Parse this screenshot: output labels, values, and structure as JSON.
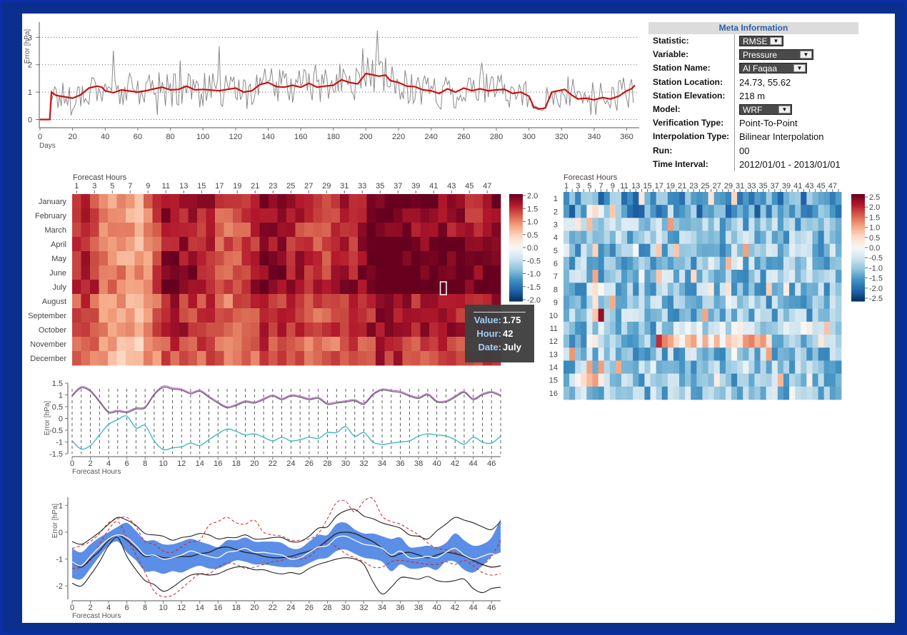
{
  "meta": {
    "title": "Meta Information",
    "rows": [
      {
        "key": "Statistic:",
        "value": "RMSE",
        "select": true,
        "w": 62
      },
      {
        "key": "Variable:",
        "value": "Pressure",
        "select": true,
        "w": 104
      },
      {
        "key": "Station Name:",
        "value": "Al Faqaa",
        "select": true,
        "w": 95
      },
      {
        "key": "Station Location:",
        "value": "24.73, 55.62"
      },
      {
        "key": "Station Elevation:",
        "value": "218 m"
      },
      {
        "key": "Model:",
        "value": "WRF",
        "select": true,
        "w": 74
      },
      {
        "key": "Verification Type:",
        "value": "Point-To-Point"
      },
      {
        "key": "Interpolation Type:",
        "value": "Bilinear Interpolation"
      },
      {
        "key": "Run:",
        "value": "00"
      },
      {
        "key": "Time Interval:",
        "value": "2012/01/01 - 2013/01/01"
      }
    ]
  },
  "tooltip": {
    "value_label": "Value:",
    "value": "1.75",
    "hour_label": "Hour:",
    "hour": "42",
    "date_label": "Date:",
    "date": "July"
  },
  "colors": {
    "frame": "#0a2f8f",
    "panel": "#ffffff",
    "daily_raw": "#8a8a8a",
    "daily_smooth": "#cc1111",
    "diurnal_upper": "#c76ad0",
    "diurnal_mid": "#666666",
    "diurnal_lower": "#2fb7c6",
    "band_fill": "#5b8ee6",
    "band_line": "#222222",
    "band_dashed": "#d62020",
    "band_white": "#ffffff"
  },
  "chart_data": [
    {
      "type": "line",
      "name": "daily-error",
      "ylabel": "Error [hPa]",
      "xlabel": "Days",
      "xlim": [
        0,
        365
      ],
      "ylim": [
        -0.3,
        3.4
      ],
      "xticks": [
        0,
        20,
        40,
        60,
        80,
        100,
        120,
        140,
        160,
        180,
        200,
        220,
        240,
        260,
        280,
        300,
        320,
        340,
        360
      ],
      "yticks": [
        0,
        1,
        2,
        3
      ],
      "smooth_x": [
        0,
        6,
        7,
        8,
        10,
        20,
        25,
        30,
        35,
        38,
        40,
        45,
        50,
        60,
        65,
        70,
        75,
        80,
        85,
        90,
        95,
        100,
        110,
        120,
        125,
        130,
        135,
        140,
        145,
        150,
        155,
        160,
        165,
        170,
        175,
        180,
        185,
        190,
        195,
        200,
        205,
        208,
        212,
        215,
        220,
        225,
        230,
        235,
        240,
        245,
        250,
        255,
        260,
        265,
        270,
        275,
        280,
        285,
        290,
        295,
        300,
        303,
        306,
        310,
        314,
        318,
        322,
        326,
        330,
        335,
        340,
        345,
        350,
        355,
        360,
        363,
        365
      ],
      "smooth_y": [
        0,
        0,
        1.0,
        0.95,
        0.88,
        0.78,
        0.9,
        1.15,
        1.22,
        1.18,
        1.05,
        0.98,
        1.08,
        1.0,
        1.05,
        1.12,
        1.18,
        1.08,
        1.1,
        1.22,
        1.08,
        1.1,
        1.05,
        1.15,
        1.0,
        1.05,
        1.28,
        1.35,
        1.2,
        1.18,
        1.25,
        1.18,
        1.32,
        1.18,
        1.22,
        1.25,
        1.45,
        1.35,
        1.3,
        1.68,
        1.62,
        1.58,
        1.62,
        1.42,
        1.35,
        1.22,
        1.2,
        1.08,
        1.05,
        0.95,
        1.12,
        1.0,
        1.15,
        1.05,
        1.12,
        1.05,
        1.08,
        1.1,
        0.95,
        1.0,
        0.85,
        0.45,
        0.38,
        0.42,
        1.0,
        1.05,
        1.1,
        0.9,
        0.75,
        0.78,
        0.72,
        0.8,
        0.75,
        0.85,
        1.05,
        1.12,
        1.25
      ]
    },
    {
      "type": "heatmap",
      "name": "monthly-hour-heatmap",
      "xlabel": "Forecast Hours",
      "xticks": [
        "1",
        "3",
        "5",
        "7",
        "9",
        "11",
        "13",
        "15",
        "17",
        "19",
        "21",
        "23",
        "25",
        "27",
        "29",
        "31",
        "33",
        "35",
        "37",
        "39",
        "41",
        "43",
        "45",
        "47"
      ],
      "rows": [
        "January",
        "February",
        "March",
        "April",
        "May",
        "June",
        "July",
        "August",
        "September",
        "October",
        "November",
        "December"
      ],
      "columns": 48,
      "colorbar": [
        "2.0",
        "1.5",
        "1.0",
        "0.5",
        "0.0",
        "-0.5",
        "-1.0",
        "-1.5",
        "-2.0"
      ],
      "vmin": -2.0,
      "vmax": 2.0,
      "month_base": [
        1.4,
        1.35,
        1.3,
        1.3,
        1.35,
        1.4,
        1.45,
        1.2,
        1.15,
        1.25,
        1.05,
        1.05
      ],
      "hour_profile": [
        1.1,
        1.15,
        1.0,
        0.85,
        0.7,
        0.65,
        0.6,
        0.6,
        0.75,
        0.95,
        1.3,
        1.3,
        1.25,
        1.25,
        1.2,
        1.15,
        1.0,
        0.95,
        1.0,
        1.05,
        1.15,
        1.3,
        1.3,
        1.25,
        1.2,
        1.15,
        1.1,
        1.05,
        1.05,
        1.1,
        1.15,
        1.2,
        1.25,
        1.35,
        1.45,
        1.45,
        1.4,
        1.35,
        1.3,
        1.3,
        1.35,
        1.35,
        1.3,
        1.25,
        1.2,
        1.2,
        1.3,
        1.35
      ]
    },
    {
      "type": "heatmap",
      "name": "station-hour-heatmap",
      "xlabel": "Forecast Hours",
      "xticks": [
        "1",
        "3",
        "5",
        "7",
        "9",
        "11",
        "13",
        "15",
        "17",
        "19",
        "21",
        "23",
        "25",
        "27",
        "29",
        "31",
        "33",
        "35",
        "37",
        "39",
        "41",
        "43",
        "45",
        "47"
      ],
      "rows": [
        "1",
        "2",
        "3",
        "4",
        "5",
        "6",
        "7",
        "8",
        "9",
        "10",
        "11",
        "12",
        "13",
        "14",
        "15",
        "16"
      ],
      "columns": 48,
      "colorbar": [
        "2.5",
        "2.0",
        "1.5",
        "1.0",
        "0.5",
        "0.0",
        "-0.5",
        "-1.0",
        "-1.5",
        "-2.0",
        "-2.5"
      ],
      "vmin": -2.5,
      "vmax": 2.5
    },
    {
      "type": "line",
      "name": "diurnal-error",
      "ylabel": "Error [hPa]",
      "xlabel": "Forecast Hours",
      "xlim": [
        0,
        47
      ],
      "ylim": [
        -1.5,
        1.5
      ],
      "yticks": [
        "1.5",
        "1",
        "0.5",
        "0",
        "-0.5",
        "-1",
        "-1.5"
      ],
      "xticks": [
        "0",
        "2",
        "4",
        "6",
        "8",
        "10",
        "12",
        "14",
        "16",
        "18",
        "20",
        "22",
        "24",
        "26",
        "28",
        "30",
        "32",
        "34",
        "36",
        "38",
        "40",
        "42",
        "44",
        "46"
      ],
      "x": [
        0,
        1,
        2,
        3,
        4,
        5,
        6,
        7,
        8,
        9,
        10,
        11,
        12,
        13,
        14,
        15,
        16,
        17,
        18,
        19,
        20,
        21,
        22,
        23,
        24,
        25,
        26,
        27,
        28,
        29,
        30,
        31,
        32,
        33,
        34,
        35,
        36,
        37,
        38,
        39,
        40,
        41,
        42,
        43,
        44,
        45,
        46,
        47
      ],
      "series": [
        {
          "values": [
            1.0,
            1.35,
            1.2,
            0.75,
            0.3,
            0.35,
            0.3,
            0.45,
            0.5,
            1.05,
            1.38,
            1.3,
            1.25,
            1.1,
            1.2,
            0.95,
            0.7,
            0.5,
            0.6,
            0.75,
            0.7,
            0.85,
            1.0,
            0.85,
            1.0,
            0.95,
            0.85,
            0.9,
            0.65,
            0.7,
            0.75,
            0.8,
            0.65,
            1.05,
            1.25,
            1.2,
            1.15,
            1.0,
            0.9,
            1.05,
            0.75,
            0.75,
            0.95,
            1.15,
            0.85,
            1.05,
            1.15,
            1.0
          ]
        },
        {
          "values": [
            0.95,
            1.3,
            1.15,
            0.7,
            0.25,
            0.3,
            0.25,
            0.4,
            0.45,
            1.0,
            1.32,
            1.25,
            1.2,
            1.05,
            1.15,
            0.9,
            0.65,
            0.45,
            0.55,
            0.7,
            0.65,
            0.8,
            0.95,
            0.8,
            0.95,
            0.9,
            0.8,
            0.85,
            0.6,
            0.65,
            0.7,
            0.75,
            0.6,
            1.0,
            1.2,
            1.15,
            1.1,
            0.95,
            0.85,
            1.0,
            0.7,
            0.7,
            0.9,
            1.1,
            0.8,
            1.0,
            1.1,
            0.95
          ]
        },
        {
          "values": [
            -0.95,
            -1.3,
            -1.15,
            -0.7,
            -0.25,
            -0.05,
            0.1,
            -0.4,
            -0.3,
            -0.95,
            -1.32,
            -1.25,
            -1.2,
            -1.05,
            -1.15,
            -0.9,
            -0.65,
            -0.45,
            -0.55,
            -0.7,
            -0.65,
            -0.8,
            -0.95,
            -0.8,
            -0.95,
            -0.9,
            -0.8,
            -0.85,
            -0.6,
            -0.6,
            -0.35,
            -0.75,
            -0.6,
            -1.0,
            -1.1,
            -1.05,
            -1.0,
            -0.95,
            -0.75,
            -0.65,
            -0.7,
            -0.75,
            -0.9,
            -1.1,
            -0.8,
            -1.0,
            -1.05,
            -0.75
          ]
        }
      ]
    },
    {
      "type": "area",
      "name": "error-spread",
      "ylabel": "Error [hPa]",
      "xlabel": "Forecast Hours",
      "xlim": [
        0,
        47
      ],
      "ylim": [
        -2.5,
        1.3
      ],
      "yticks": [
        "1",
        "0",
        "-1",
        "-2"
      ],
      "xticks": [
        "0",
        "2",
        "4",
        "6",
        "8",
        "10",
        "12",
        "14",
        "16",
        "18",
        "20",
        "22",
        "24",
        "26",
        "28",
        "30",
        "32",
        "34",
        "36",
        "38",
        "40",
        "42",
        "44",
        "46"
      ],
      "x": [
        0,
        1,
        2,
        3,
        4,
        5,
        6,
        7,
        8,
        9,
        10,
        11,
        12,
        13,
        14,
        15,
        16,
        17,
        18,
        19,
        20,
        21,
        22,
        23,
        24,
        25,
        26,
        27,
        28,
        29,
        30,
        31,
        32,
        33,
        34,
        35,
        36,
        37,
        38,
        39,
        40,
        41,
        42,
        43,
        44,
        45,
        46,
        47
      ],
      "median": [
        -1.1,
        -1.25,
        -0.9,
        -0.55,
        -0.25,
        -0.1,
        -0.2,
        -0.5,
        -0.85,
        -0.85,
        -1.0,
        -0.95,
        -0.85,
        -0.7,
        -0.8,
        -0.9,
        -0.95,
        -0.75,
        -0.7,
        -0.6,
        -0.75,
        -0.75,
        -0.8,
        -0.85,
        -1.0,
        -0.95,
        -0.75,
        -0.55,
        -0.5,
        -0.2,
        -0.15,
        -0.3,
        -0.45,
        -0.5,
        -0.6,
        -0.85,
        -0.7,
        -0.95,
        -0.95,
        -0.9,
        -0.95,
        -0.75,
        -0.6,
        -0.85,
        -1.0,
        -0.9,
        -0.8,
        -0.95
      ],
      "lower": [
        -1.7,
        -1.75,
        -1.35,
        -0.9,
        -0.5,
        -0.35,
        -0.75,
        -1.05,
        -1.45,
        -1.45,
        -1.55,
        -1.45,
        -1.5,
        -1.35,
        -1.25,
        -1.35,
        -1.35,
        -1.2,
        -1.05,
        -1.1,
        -1.2,
        -1.2,
        -1.25,
        -1.3,
        -1.3,
        -1.3,
        -1.15,
        -1.0,
        -0.95,
        -0.7,
        -0.65,
        -0.8,
        -0.95,
        -1.0,
        -1.1,
        -1.45,
        -1.2,
        -1.35,
        -1.35,
        -1.3,
        -1.4,
        -1.1,
        -1.1,
        -1.4,
        -1.5,
        -1.25,
        -0.9,
        -0.75
      ],
      "upper": [
        -0.6,
        -0.75,
        -0.45,
        -0.2,
        0.0,
        0.2,
        0.35,
        0.05,
        -0.3,
        -0.3,
        -0.45,
        -0.45,
        -0.35,
        -0.25,
        -0.35,
        -0.45,
        -0.55,
        -0.3,
        -0.3,
        -0.2,
        -0.35,
        -0.35,
        -0.35,
        -0.4,
        -0.6,
        -0.6,
        -0.35,
        -0.1,
        -0.1,
        0.3,
        0.35,
        0.1,
        -0.05,
        -0.05,
        -0.15,
        -0.25,
        -0.2,
        -0.55,
        -0.55,
        -0.5,
        -0.55,
        -0.4,
        -0.05,
        -0.3,
        -0.5,
        -0.45,
        -0.2,
        0.5
      ],
      "black_low": [
        -1.9,
        -2.0,
        -1.6,
        -1.1,
        -0.5,
        -0.2,
        -0.9,
        -1.4,
        -1.8,
        -1.95,
        -2.2,
        -2.05,
        -1.8,
        -1.6,
        -1.55,
        -1.6,
        -1.55,
        -1.4,
        -1.3,
        -1.3,
        -1.4,
        -1.4,
        -1.5,
        -1.55,
        -1.5,
        -1.55,
        -1.35,
        -1.2,
        -1.1,
        -1.0,
        -0.95,
        -1.0,
        -1.2,
        -1.85,
        -2.3,
        -2.05,
        -1.7,
        -1.7,
        -1.75,
        -1.65,
        -1.8,
        -1.85,
        -1.8,
        -1.75,
        -2.1,
        -2.25,
        -2.1,
        -2.05
      ],
      "black_high": [
        -0.35,
        -0.45,
        -0.25,
        0.0,
        0.3,
        0.55,
        0.45,
        0.25,
        -0.05,
        -0.1,
        -0.15,
        -0.3,
        -0.2,
        -0.15,
        -0.05,
        -0.1,
        -0.25,
        -0.2,
        -0.2,
        -0.1,
        -0.25,
        -0.25,
        -0.2,
        -0.2,
        -0.35,
        -0.35,
        -0.15,
        0.15,
        0.2,
        0.6,
        0.8,
        0.85,
        0.6,
        0.5,
        0.35,
        0.25,
        0.15,
        -0.1,
        -0.15,
        -0.25,
        0.05,
        0.3,
        0.55,
        0.45,
        0.35,
        0.2,
        0.1,
        0.4
      ],
      "black_mid": [
        -1.1,
        -1.3,
        -1.0,
        -0.7,
        -0.3,
        -0.1,
        -0.3,
        -0.6,
        -0.9,
        -0.85,
        -0.95,
        -0.95,
        -0.9,
        -0.9,
        -0.8,
        -0.75,
        -0.6,
        -0.55,
        -0.65,
        -0.75,
        -0.8,
        -0.9,
        -0.95,
        -0.95,
        -0.9,
        -0.8,
        -0.7,
        -0.55,
        -0.3,
        -0.05,
        0.0,
        -0.05,
        -0.2,
        -0.35,
        -0.6,
        -0.9,
        -0.8,
        -0.75,
        -0.85,
        -0.95,
        -0.85,
        -0.75,
        -0.8,
        -0.9,
        -1.05,
        -1.2,
        -1.3,
        -1.25
      ],
      "red_low": [
        -1.35,
        -1.3,
        -1.05,
        -0.45,
        0.1,
        0.4,
        -0.2,
        -0.85,
        -1.5,
        -2.2,
        -2.4,
        -2.35,
        -2.1,
        -1.8,
        -1.55,
        -1.55,
        -1.3,
        -1.15,
        -1.2,
        -1.35,
        -1.3,
        -1.2,
        -1.1,
        -1.05,
        -0.9,
        -1.0,
        -0.9,
        -0.6,
        -0.4,
        -0.55,
        -0.8,
        -0.95,
        -1.1,
        -1.3,
        -1.3,
        -1.1,
        -1.05,
        -1.1,
        -1.15,
        -1.2,
        -1.2,
        -1.1,
        -1.2,
        -1.05,
        -1.25,
        -1.5,
        -1.6,
        -1.55
      ],
      "red_high": [
        -0.6,
        -0.5,
        -0.35,
        -0.05,
        0.35,
        0.5,
        0.55,
        0.2,
        -0.35,
        -0.45,
        -0.7,
        -0.75,
        -0.55,
        -0.35,
        -0.3,
        0.25,
        0.4,
        0.55,
        0.35,
        0.3,
        0.45,
        0.0,
        -0.1,
        -0.15,
        -0.3,
        -0.3,
        -0.25,
        -0.05,
        0.5,
        1.1,
        1.15,
        0.75,
        1.15,
        1.25,
        0.6,
        0.4,
        0.3,
        0.1,
        -0.1,
        -0.4,
        -0.6,
        -0.65,
        -0.75,
        -0.85,
        -1.1,
        -1.2,
        -0.9,
        -0.3
      ]
    }
  ]
}
